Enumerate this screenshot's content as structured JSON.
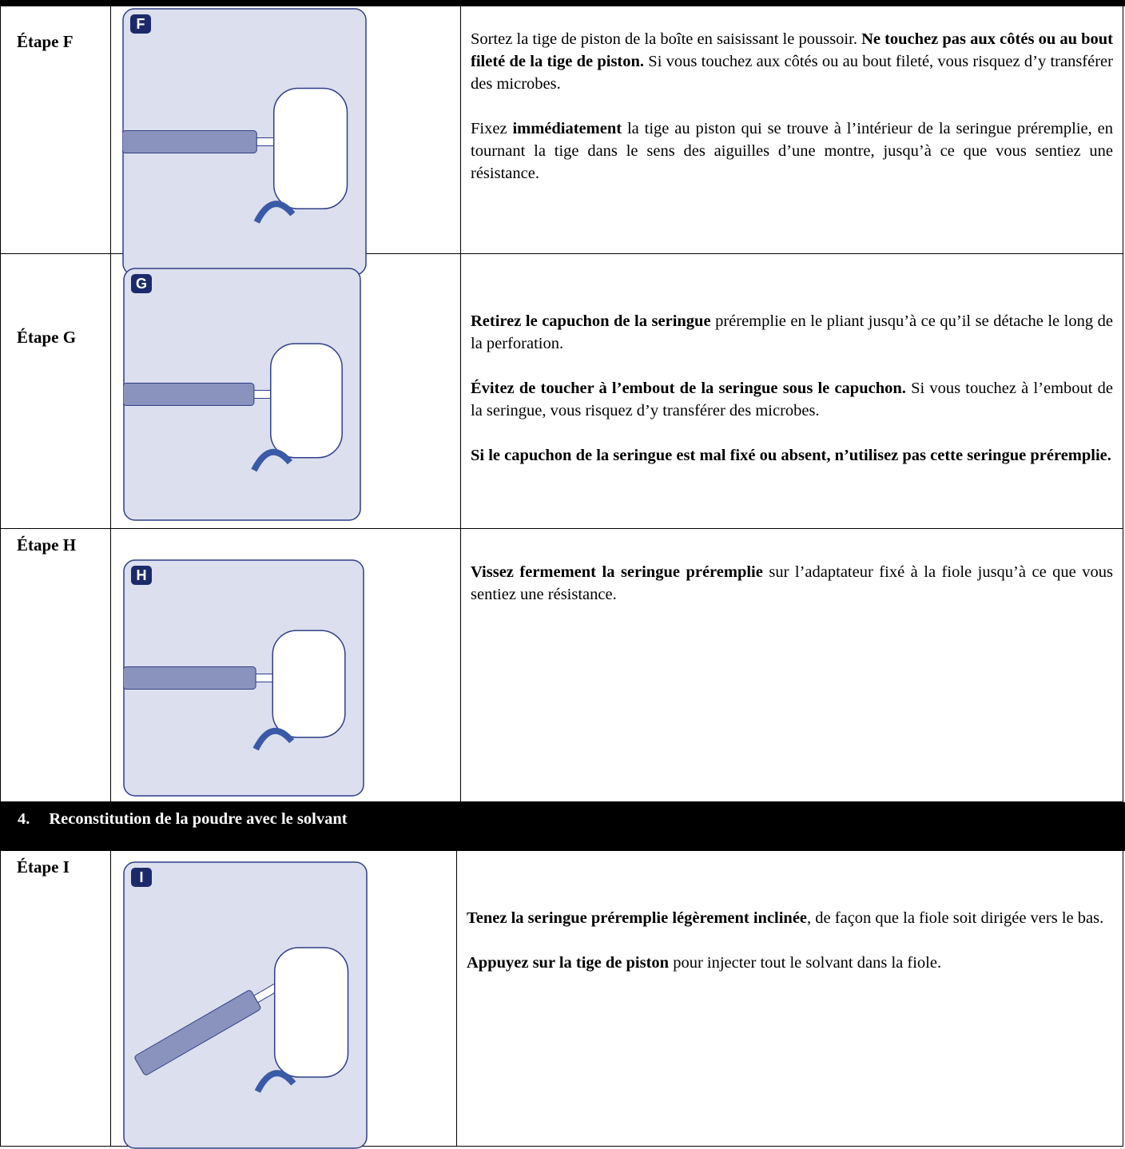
{
  "steps": [
    {
      "label": "Étape F",
      "badge": "F",
      "paragraphs": [
        [
          {
            "text": "Sortez la tige de piston de la boîte en saisissant le poussoir. "
          },
          {
            "text": "Ne touchez pas aux côtés ou au bout fileté de la tige de piston.",
            "bold": true
          },
          {
            "text": " Si vous touchez aux côtés ou au bout fileté, vous risquez d’y transférer des microbes."
          }
        ],
        [
          {
            "text": "Fixez "
          },
          {
            "text": "immédiatement",
            "bold": true
          },
          {
            "text": " la tige au piston qui se trouve à l’intérieur de la seringue préremplie, en tournant la tige dans le sens des aiguilles d’une montre, jusqu’à ce que vous sentiez une résistance."
          }
        ]
      ]
    },
    {
      "label": "Étape G",
      "badge": "G",
      "paragraphs": [
        [
          {
            "text": "Retirez le capuchon de la seringue",
            "bold": true
          },
          {
            "text": " préremplie en le pliant jusqu’à ce qu’il se détache le long de la perforation."
          }
        ],
        [
          {
            "text": "Évitez de toucher à l’embout de la seringue sous le capuchon.",
            "bold": true
          },
          {
            "text": " Si vous touchez à l’embout de la seringue, vous risquez d’y transférer des microbes."
          }
        ],
        [
          {
            "text": "Si le capuchon de la seringue est mal fixé ou absent, n’utilisez pas cette seringue préremplie.",
            "bold": true
          }
        ]
      ]
    },
    {
      "label": "Étape H",
      "badge": "H",
      "paragraphs": [
        [
          {
            "text": "Vissez fermement la seringue préremplie",
            "bold": true
          },
          {
            "text": " sur l’adaptateur fixé à la fiole jusqu’à ce que vous sentiez une résistance."
          }
        ]
      ]
    },
    {
      "label": "Étape I",
      "badge": "I",
      "paragraphs": [
        [
          {
            "text": "Tenez la seringue préremplie légèrement inclinée",
            "bold": true
          },
          {
            "text": ", de façon que la fiole soit dirigée vers le bas."
          }
        ],
        [
          {
            "text": "Appuyez sur la tige de piston",
            "bold": true
          },
          {
            "text": " pour injecter tout le solvant dans la fiole."
          }
        ]
      ]
    }
  ],
  "section": {
    "number": "4.",
    "title": "Reconstitution de la poudre avec le solvant"
  }
}
